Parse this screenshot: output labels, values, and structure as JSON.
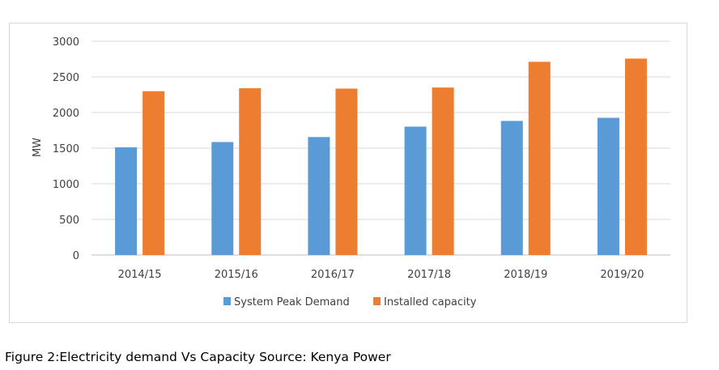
{
  "caption": "Figure 2:Electricity demand Vs Capacity Source: Kenya Power",
  "chart_data": {
    "type": "bar",
    "title": "",
    "xlabel": "",
    "ylabel": "MW",
    "ylim": [
      0,
      3000
    ],
    "yticks": [
      0,
      500,
      1000,
      1500,
      2000,
      2500,
      3000
    ],
    "grid": true,
    "legend_position": "bottom",
    "categories": [
      "2014/15",
      "2015/16",
      "2016/17",
      "2017/18",
      "2018/19",
      "2019/20"
    ],
    "series": [
      {
        "name": "System Peak Demand",
        "color": "#5b9bd5",
        "values": [
          1512,
          1586,
          1656,
          1802,
          1882,
          1926
        ]
      },
      {
        "name": "Installed capacity",
        "color": "#ed7d31",
        "values": [
          2299,
          2341,
          2336,
          2351,
          2712,
          2757
        ]
      }
    ]
  }
}
